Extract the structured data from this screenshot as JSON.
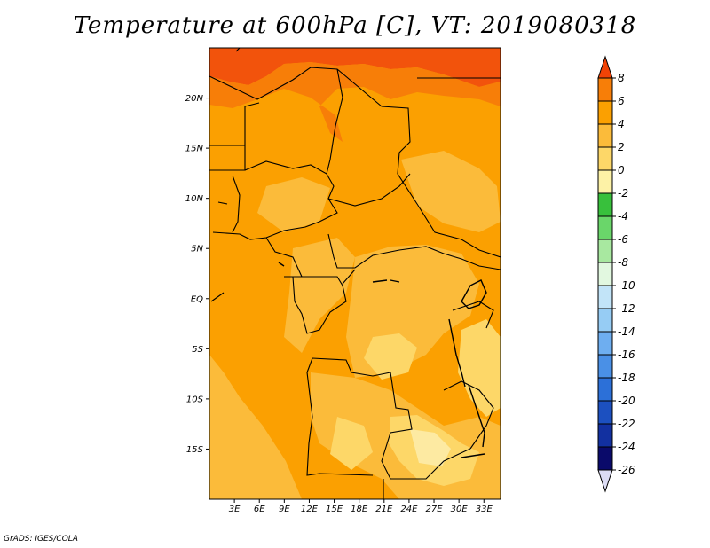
{
  "title": "Temperature at 600hPa [C], VT: 2019080318",
  "credit": "GrADS: IGES/COLA",
  "map": {
    "lon_ticks": [
      "3E",
      "6E",
      "9E",
      "12E",
      "15E",
      "18E",
      "21E",
      "24E",
      "27E",
      "30E",
      "33E"
    ],
    "lat_ticks": [
      "20N",
      "15N",
      "10N",
      "5N",
      "EQ",
      "5S",
      "10S",
      "15S"
    ],
    "lon_range": [
      0,
      35
    ],
    "lat_range": [
      -20,
      25
    ],
    "fields": {
      "main_color": "#fba001",
      "warm_color": "#f77e08",
      "hot_color": "#f2530c",
      "mild_color": "#fbbb3a",
      "cool_color": "#fdd768",
      "coolest_color": "#fdeaa2"
    }
  },
  "colorbar": {
    "labels": [
      "8",
      "6",
      "4",
      "2",
      "0",
      "-2",
      "-4",
      "-6",
      "-8",
      "-10",
      "-12",
      "-14",
      "-16",
      "-18",
      "-20",
      "-22",
      "-24",
      "-26"
    ],
    "colors": [
      "#f14306",
      "#f77e08",
      "#fba001",
      "#fbbb3a",
      "#fdd768",
      "#fdf2a6",
      "#38c03c",
      "#6ad66a",
      "#a8e8a0",
      "#e2f8e0",
      "#c2e4f8",
      "#96ccf4",
      "#6eaef0",
      "#4a90e6",
      "#2c70d8",
      "#1c50c0",
      "#1230a0",
      "#0a0a6a",
      "#dcdcf4"
    ]
  }
}
